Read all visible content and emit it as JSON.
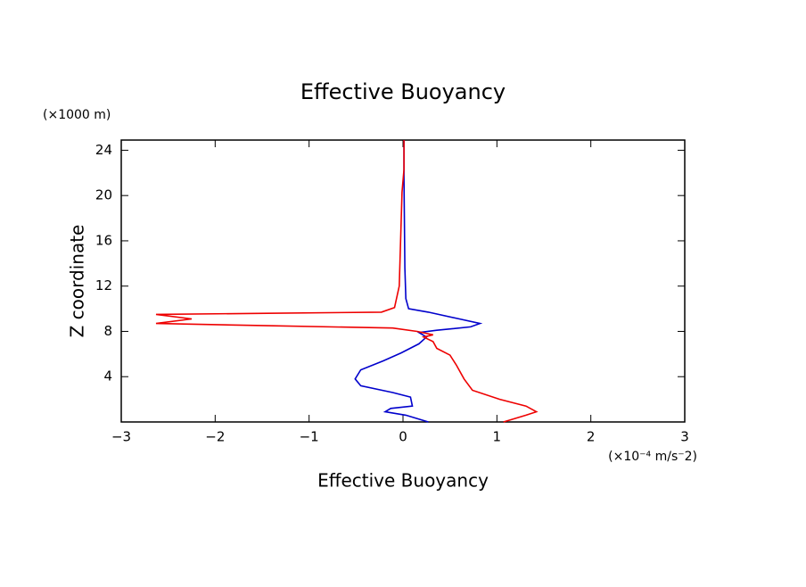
{
  "chart_data": {
    "type": "line",
    "title": "Effective Buoyancy",
    "x_label": "Effective Buoyancy",
    "x_unit": "(×10⁻⁴ m/s⁻2)",
    "y_label": "Z coordinate",
    "y_unit": "(×1000 m)",
    "xlim": [
      -3,
      3
    ],
    "xticks": [
      {
        "value": -3,
        "label": "−3"
      },
      {
        "value": -2,
        "label": "−2"
      },
      {
        "value": -1,
        "label": "−1"
      },
      0,
      1,
      2,
      3
    ],
    "ylim": [
      0,
      24.9
    ],
    "yticks": [
      4,
      8,
      12,
      16,
      20,
      24
    ],
    "grid": false,
    "series": [
      {
        "color": "#0000cc",
        "x": [
          0.27,
          0.03,
          -0.19,
          -0.13,
          0.1,
          0.08,
          -0.11,
          -0.45,
          -0.51,
          -0.45,
          -0.21,
          -0.02,
          0.17,
          0.25,
          0.17,
          0.36,
          0.72,
          0.82,
          0.6,
          0.27,
          0.06,
          0.03,
          0.02,
          0.01,
          0.01
        ],
        "values": [
          0,
          0.6,
          0.9,
          1.2,
          1.4,
          2.2,
          2.6,
          3.2,
          3.8,
          4.6,
          5.4,
          6.1,
          6.9,
          7.5,
          7.9,
          8.1,
          8.4,
          8.7,
          9.1,
          9.7,
          10.0,
          10.9,
          13.6,
          21.5,
          24.9
        ]
      },
      {
        "color": "#ee0000",
        "x": [
          1.07,
          1.31,
          1.42,
          1.31,
          1.03,
          0.74,
          0.65,
          0.57,
          0.5,
          0.36,
          0.32,
          0.22,
          0.32,
          0.15,
          -0.11,
          -1.44,
          -2.63,
          -2.25,
          -2.63,
          -1.44,
          -0.23,
          -0.09,
          -0.04,
          -0.02,
          -0.01,
          0.01,
          0.01
        ],
        "values": [
          0,
          0.6,
          0.9,
          1.4,
          2.0,
          2.8,
          3.8,
          5.0,
          5.9,
          6.5,
          7.1,
          7.5,
          7.7,
          8.0,
          8.3,
          8.5,
          8.7,
          9.1,
          9.5,
          9.6,
          9.7,
          10.1,
          12.0,
          17.6,
          20.3,
          22.3,
          24.9
        ]
      }
    ]
  }
}
